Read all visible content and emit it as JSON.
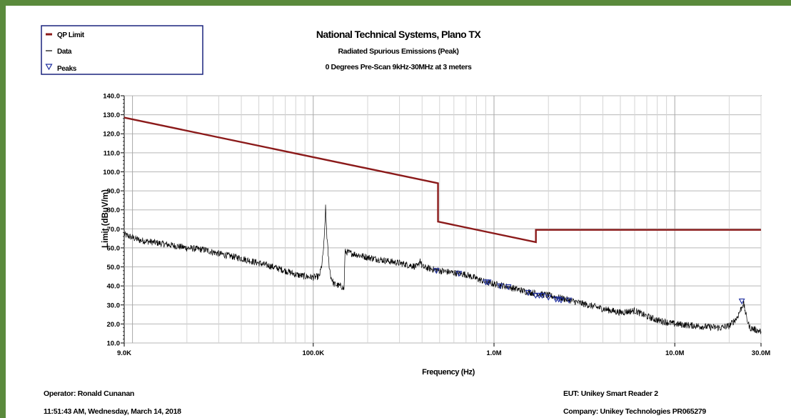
{
  "header": {
    "title": "National Technical Systems, Plano TX",
    "subtitle": "Radiated Spurious Emissions (Peak)",
    "subtitle2": "0 Degrees Pre-Scan 9kHz-30MHz at 3 meters"
  },
  "footer": {
    "operator": "Operator: Ronald Cunanan",
    "datetime": "11:51:43 AM, Wednesday, March 14, 2018",
    "eut": "EUT: Unikey Smart Reader 2",
    "company": "Company: Unikey Technologies PR065279"
  },
  "colors": {
    "limit": "#8b1a1a",
    "data": "#000000",
    "peaks": "#1f2f9f",
    "legend_border": "#1a237e",
    "frame": "#5a8a3c"
  },
  "chart_data": {
    "type": "line",
    "x_scale": "log",
    "xlabel": "Frequency (Hz)",
    "ylabel": "Limit (dBuV/m)",
    "xlim": [
      9000,
      30000000
    ],
    "ylim": [
      10,
      140
    ],
    "grid": true,
    "x_ticks": [
      {
        "value": 9000,
        "label": "9.0K"
      },
      {
        "value": 100000,
        "label": "100.0K"
      },
      {
        "value": 1000000,
        "label": "1.0M"
      },
      {
        "value": 10000000,
        "label": "10.0M"
      },
      {
        "value": 30000000,
        "label": "30.0M"
      }
    ],
    "y_ticks": [
      {
        "value": 10,
        "label": "10.0"
      },
      {
        "value": 20,
        "label": "20.0"
      },
      {
        "value": 30,
        "label": "30.0"
      },
      {
        "value": 40,
        "label": "40.0"
      },
      {
        "value": 50,
        "label": "50.0"
      },
      {
        "value": 60,
        "label": "60.0"
      },
      {
        "value": 70,
        "label": "70.0"
      },
      {
        "value": 80,
        "label": "80.0"
      },
      {
        "value": 90,
        "label": "90.0"
      },
      {
        "value": 100,
        "label": "100.0"
      },
      {
        "value": 110,
        "label": "110.0"
      },
      {
        "value": 120,
        "label": "120.0"
      },
      {
        "value": 130,
        "label": "130.0"
      },
      {
        "value": 140,
        "label": "140.0"
      }
    ],
    "legend": {
      "position": "top-left",
      "entries": [
        {
          "label": "QP Limit",
          "symbol": "line",
          "color": "#8b1a1a"
        },
        {
          "label": "Data",
          "symbol": "line",
          "color": "#000000"
        },
        {
          "label": "Peaks",
          "symbol": "triangle",
          "color": "#1f2f9f"
        }
      ]
    },
    "series": [
      {
        "name": "QP Limit",
        "color": "#8b1a1a",
        "points": [
          [
            9000,
            128.5
          ],
          [
            490000,
            94
          ],
          [
            490000,
            73.8
          ],
          [
            1705000,
            63
          ],
          [
            1705000,
            69.5
          ],
          [
            30000000,
            69.5
          ]
        ]
      },
      {
        "name": "Data",
        "color": "#000000",
        "points": [
          [
            9000,
            67
          ],
          [
            11000,
            64
          ],
          [
            13000,
            63
          ],
          [
            15000,
            62
          ],
          [
            20000,
            60
          ],
          [
            25000,
            59
          ],
          [
            30000,
            57
          ],
          [
            40000,
            54.5
          ],
          [
            50000,
            52
          ],
          [
            60000,
            50
          ],
          [
            70000,
            48
          ],
          [
            80000,
            46
          ],
          [
            90000,
            45
          ],
          [
            100000,
            44.5
          ],
          [
            108000,
            45
          ],
          [
            112000,
            52
          ],
          [
            115000,
            64
          ],
          [
            117000,
            81
          ],
          [
            119000,
            66
          ],
          [
            122000,
            52
          ],
          [
            125000,
            45
          ],
          [
            130000,
            41
          ],
          [
            140000,
            40
          ],
          [
            145000,
            39.5
          ],
          [
            148000,
            38
          ],
          [
            150000,
            58
          ],
          [
            200000,
            55
          ],
          [
            300000,
            52
          ],
          [
            380000,
            50
          ],
          [
            390000,
            54
          ],
          [
            400000,
            50
          ],
          [
            500000,
            48
          ],
          [
            700000,
            46
          ],
          [
            900000,
            42
          ],
          [
            1000000,
            41
          ],
          [
            1200000,
            39.5
          ],
          [
            1500000,
            37
          ],
          [
            2000000,
            35
          ],
          [
            2500000,
            33
          ],
          [
            3000000,
            31
          ],
          [
            4000000,
            28
          ],
          [
            5000000,
            26
          ],
          [
            6000000,
            27
          ],
          [
            7000000,
            24
          ],
          [
            8000000,
            22
          ],
          [
            10000000,
            20
          ],
          [
            15000000,
            18.5
          ],
          [
            18000000,
            18
          ],
          [
            20000000,
            19
          ],
          [
            22000000,
            23
          ],
          [
            23500000,
            29
          ],
          [
            24000000,
            31
          ],
          [
            25000000,
            23
          ],
          [
            26000000,
            18
          ],
          [
            30000000,
            16
          ]
        ]
      }
    ],
    "peaks": [
      [
        480000,
        48
      ],
      [
        640000,
        46.5
      ],
      [
        900000,
        42
      ],
      [
        930000,
        42
      ],
      [
        1080000,
        40
      ],
      [
        1200000,
        39.5
      ],
      [
        1550000,
        36.5
      ],
      [
        1700000,
        35
      ],
      [
        1780000,
        35
      ],
      [
        1850000,
        35
      ],
      [
        2000000,
        34
      ],
      [
        2200000,
        33
      ],
      [
        2280000,
        33
      ],
      [
        2350000,
        32.5
      ],
      [
        2600000,
        32.5
      ],
      [
        23500000,
        32
      ]
    ]
  }
}
